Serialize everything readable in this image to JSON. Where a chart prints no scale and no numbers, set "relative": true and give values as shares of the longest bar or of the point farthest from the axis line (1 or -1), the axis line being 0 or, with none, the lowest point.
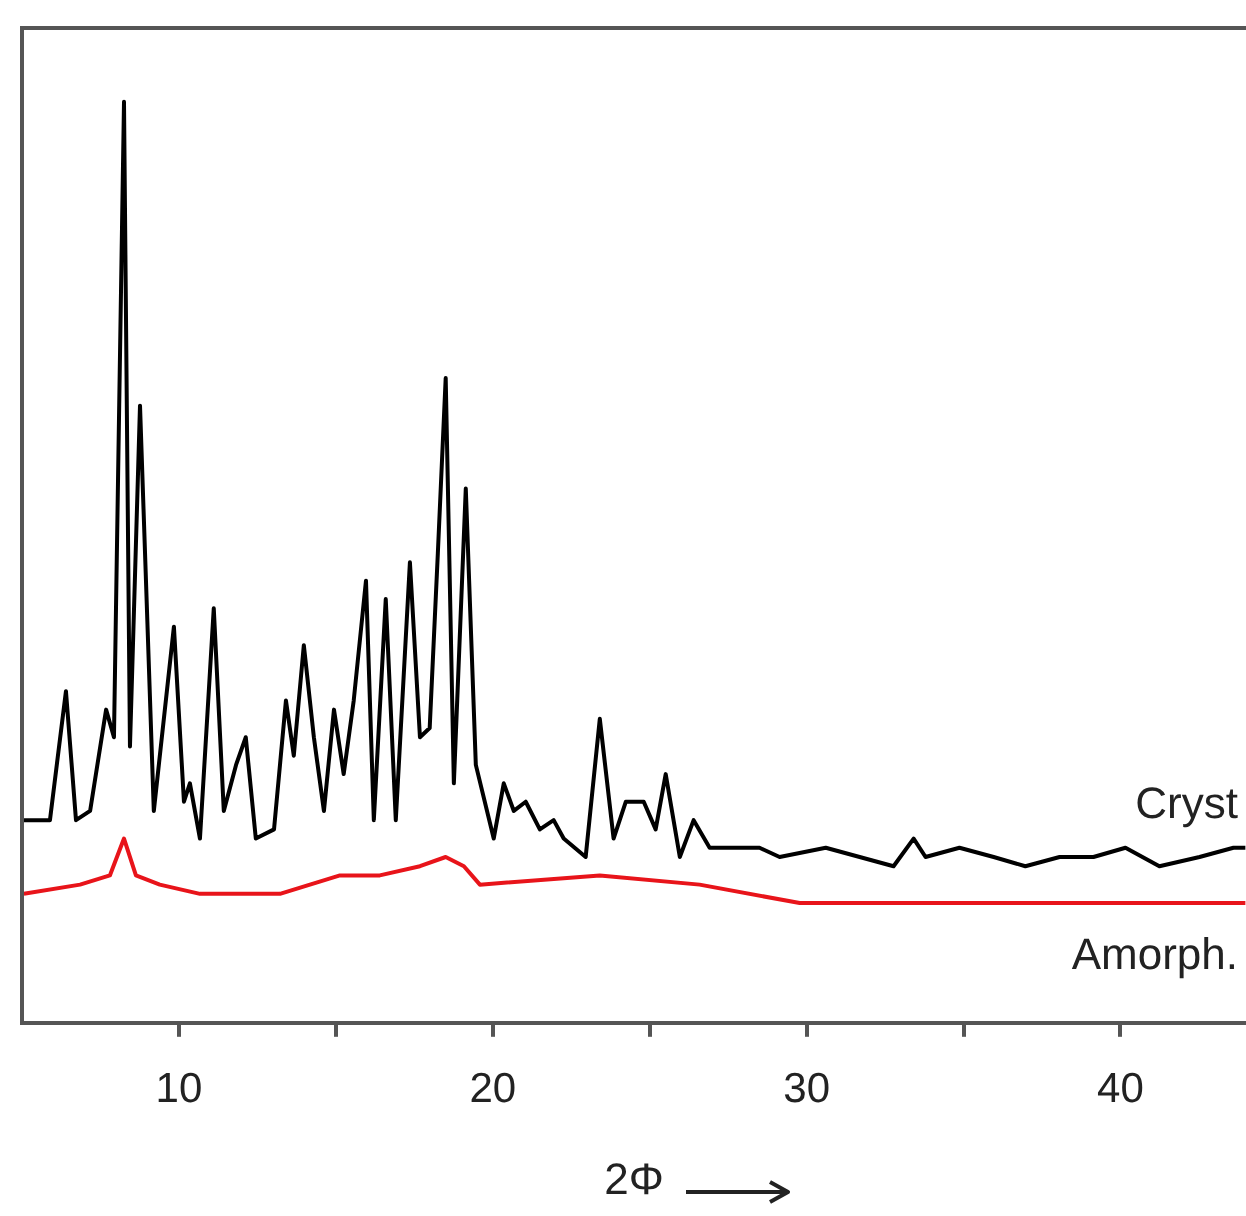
{
  "chart_data": {
    "type": "line",
    "xlabel": "2Φ",
    "relative": true,
    "grid": false,
    "legend": false,
    "marker": "none",
    "line_style": "solid",
    "xlim": [
      5,
      44
    ],
    "xticks": [
      10,
      {
        "value": 15,
        "label": null
      },
      20,
      {
        "value": 25,
        "label": null
      },
      30,
      {
        "value": 35,
        "label": null
      },
      40
    ],
    "series": [
      {
        "name": "Cryst",
        "color": "#000000",
        "x": [
          5.06,
          5.89,
          6.4,
          6.72,
          7.17,
          7.68,
          7.93,
          8.25,
          8.44,
          8.76,
          9.2,
          9.84,
          10.16,
          10.35,
          10.67,
          11.11,
          11.43,
          11.82,
          12.13,
          12.45,
          13.03,
          13.41,
          13.66,
          13.98,
          14.3,
          14.62,
          14.94,
          15.25,
          15.57,
          15.96,
          16.21,
          16.59,
          16.91,
          17.36,
          17.68,
          17.99,
          18.25,
          18.5,
          18.76,
          19.14,
          19.46,
          20.03,
          20.35,
          20.67,
          21.05,
          21.5,
          21.94,
          22.26,
          22.96,
          23.41,
          23.85,
          24.24,
          24.81,
          25.19,
          25.51,
          25.96,
          26.4,
          26.91,
          27.42,
          27.99,
          28.5,
          29.14,
          30.61,
          32.77,
          33.41,
          33.79,
          34.87,
          35.96,
          36.97,
          38.06,
          39.14,
          40.16,
          41.24,
          42.52,
          43.6,
          43.98
        ],
        "values": [
          0.22,
          0.22,
          0.36,
          0.22,
          0.23,
          0.34,
          0.31,
          1.0,
          0.3,
          0.67,
          0.23,
          0.43,
          0.24,
          0.26,
          0.2,
          0.45,
          0.23,
          0.28,
          0.31,
          0.2,
          0.21,
          0.35,
          0.29,
          0.41,
          0.31,
          0.23,
          0.34,
          0.27,
          0.35,
          0.48,
          0.22,
          0.46,
          0.22,
          0.5,
          0.31,
          0.32,
          0.51,
          0.7,
          0.26,
          0.58,
          0.28,
          0.2,
          0.26,
          0.23,
          0.24,
          0.21,
          0.22,
          0.2,
          0.18,
          0.33,
          0.2,
          0.24,
          0.24,
          0.21,
          0.27,
          0.18,
          0.22,
          0.19,
          0.19,
          0.19,
          0.19,
          0.18,
          0.19,
          0.17,
          0.2,
          0.18,
          0.19,
          0.18,
          0.17,
          0.18,
          0.18,
          0.19,
          0.17,
          0.18,
          0.19,
          0.19
        ]
      },
      {
        "name": "Amorph.",
        "color": "#e8141a",
        "x": [
          5.06,
          6.85,
          7.8,
          8.25,
          8.63,
          9.39,
          10.67,
          13.22,
          15.13,
          16.4,
          17.68,
          18.5,
          19.08,
          19.59,
          23.41,
          26.59,
          29.78,
          36.15,
          43.98
        ],
        "values": [
          0.14,
          0.15,
          0.16,
          0.2,
          0.16,
          0.15,
          0.14,
          0.14,
          0.16,
          0.16,
          0.17,
          0.18,
          0.17,
          0.15,
          0.16,
          0.15,
          0.13,
          0.13,
          0.13
        ]
      }
    ]
  }
}
